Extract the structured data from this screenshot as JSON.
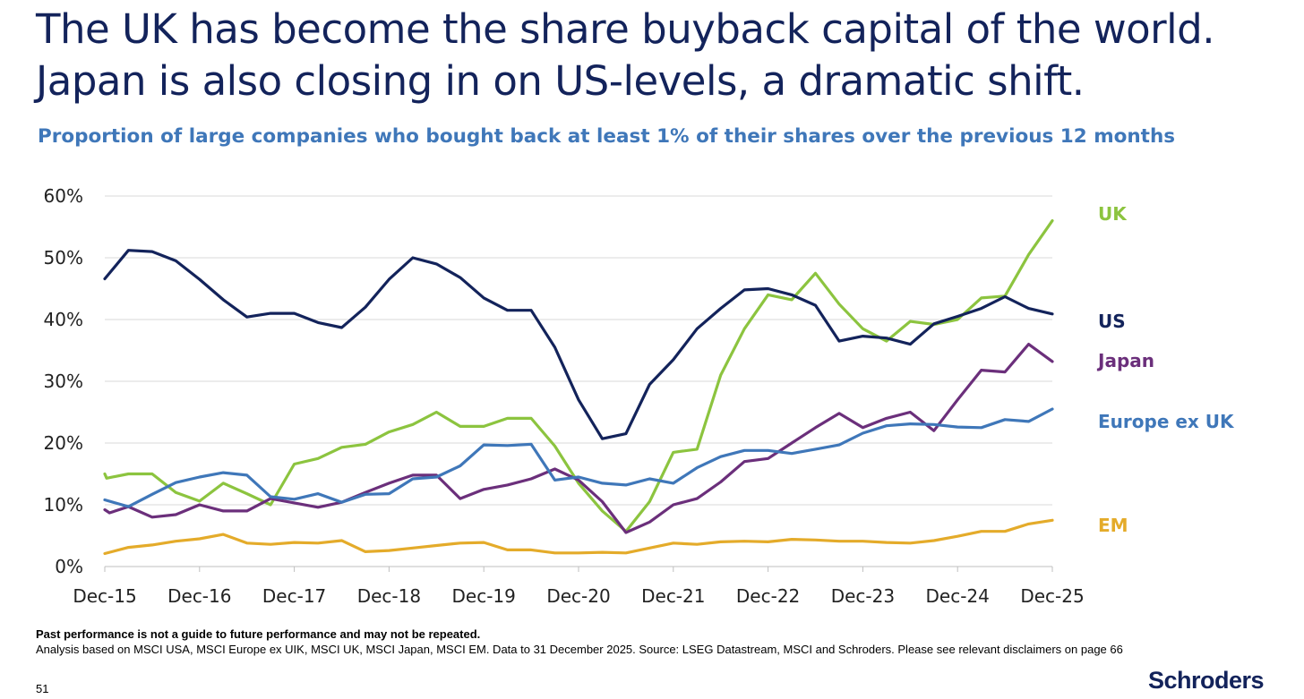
{
  "title_line1": "The UK has become the share buyback capital of the world.",
  "title_line2": "Japan is also closing in on US-levels, a dramatic shift.",
  "subtitle": "Proportion of large companies who bought back at least 1% of their shares over the previous 12 months",
  "footnote_bold": "Past performance is not a guide to future performance and may not be repeated.",
  "footnote": "Analysis based on MSCI USA, MSCI Europe ex UIK, MSCI UK, MSCI Japan, MSCI EM. Data to 31 December 2025. Source: LSEG Datastream, MSCI and Schroders. Please see relevant disclaimers on page 66",
  "page_number": "51",
  "logo_text": "Schroders",
  "chart_data": {
    "type": "line",
    "title": "Proportion of large companies who bought back at least 1% of their shares over the previous 12 months",
    "xlabel": "",
    "ylabel": "",
    "ylim": [
      0,
      0.6
    ],
    "yticks": [
      0,
      0.1,
      0.2,
      0.3,
      0.4,
      0.5,
      0.6
    ],
    "ytick_labels": [
      "0%",
      "10%",
      "20%",
      "30%",
      "40%",
      "50%",
      "60%"
    ],
    "xtick_labels": [
      "Dec-15",
      "Dec-16",
      "Dec-17",
      "Dec-18",
      "Dec-19",
      "Dec-20",
      "Dec-21",
      "Dec-22",
      "Dec-23",
      "Dec-24",
      "Dec-25"
    ],
    "x_start": "Dec-15",
    "x_end": "Dec-25",
    "x_unit": "years since Dec-15",
    "legend_placement": "right, inline labels",
    "grid": true,
    "series": [
      {
        "name": "UK",
        "color": "#8cc43f",
        "x": [
          0,
          0.02,
          0.25,
          0.5,
          0.75,
          1.0,
          1.25,
          1.5,
          1.75,
          2.0,
          2.25,
          2.5,
          2.75,
          3.0,
          3.25,
          3.5,
          3.75,
          4.0,
          4.25,
          4.5,
          4.75,
          5.0,
          5.25,
          5.5,
          5.75,
          6.0,
          6.25,
          6.5,
          6.75,
          7.0,
          7.25,
          7.5,
          7.75,
          8.0,
          8.25,
          8.5,
          8.75,
          9.0,
          9.25,
          9.5,
          9.75,
          10.0
        ],
        "y": [
          0.15,
          0.143,
          0.15,
          0.15,
          0.12,
          0.106,
          0.135,
          0.118,
          0.1,
          0.166,
          0.175,
          0.193,
          0.198,
          0.218,
          0.23,
          0.25,
          0.227,
          0.227,
          0.24,
          0.24,
          0.195,
          0.135,
          0.09,
          0.057,
          0.105,
          0.185,
          0.19,
          0.31,
          0.385,
          0.44,
          0.432,
          0.475,
          0.425,
          0.385,
          0.365,
          0.397,
          0.392,
          0.4,
          0.435,
          0.438,
          0.505,
          0.56
        ]
      },
      {
        "name": "US",
        "color": "#13235b",
        "x": [
          0,
          0.25,
          0.5,
          0.75,
          1.0,
          1.25,
          1.5,
          1.75,
          2.0,
          2.25,
          2.5,
          2.75,
          3.0,
          3.25,
          3.5,
          3.75,
          4.0,
          4.25,
          4.5,
          4.75,
          5.0,
          5.25,
          5.5,
          5.75,
          6.0,
          6.25,
          6.5,
          6.75,
          7.0,
          7.25,
          7.5,
          7.75,
          8.0,
          8.25,
          8.5,
          8.75,
          9.0,
          9.25,
          9.5,
          9.75,
          10.0
        ],
        "y": [
          0.466,
          0.512,
          0.51,
          0.495,
          0.465,
          0.432,
          0.404,
          0.41,
          0.41,
          0.395,
          0.387,
          0.42,
          0.465,
          0.5,
          0.49,
          0.468,
          0.435,
          0.415,
          0.415,
          0.355,
          0.27,
          0.207,
          0.215,
          0.295,
          0.335,
          0.385,
          0.418,
          0.448,
          0.45,
          0.44,
          0.423,
          0.365,
          0.373,
          0.37,
          0.36,
          0.393,
          0.405,
          0.418,
          0.437,
          0.418,
          0.409
        ]
      },
      {
        "name": "Japan",
        "color": "#6b2f7b",
        "x": [
          0,
          0.05,
          0.25,
          0.5,
          0.75,
          1.0,
          1.25,
          1.5,
          1.75,
          2.0,
          2.25,
          2.5,
          2.75,
          3.0,
          3.25,
          3.5,
          3.75,
          4.0,
          4.25,
          4.5,
          4.75,
          5.0,
          5.25,
          5.5,
          5.75,
          6.0,
          6.25,
          6.5,
          6.75,
          7.0,
          7.25,
          7.5,
          7.75,
          8.0,
          8.25,
          8.5,
          8.75,
          9.0,
          9.25,
          9.5,
          9.75,
          10.0
        ],
        "y": [
          0.092,
          0.087,
          0.097,
          0.08,
          0.084,
          0.1,
          0.09,
          0.09,
          0.11,
          0.103,
          0.096,
          0.104,
          0.12,
          0.135,
          0.148,
          0.148,
          0.11,
          0.125,
          0.132,
          0.142,
          0.158,
          0.14,
          0.105,
          0.055,
          0.072,
          0.1,
          0.11,
          0.137,
          0.17,
          0.175,
          0.2,
          0.225,
          0.248,
          0.225,
          0.24,
          0.25,
          0.22,
          0.27,
          0.318,
          0.315,
          0.36,
          0.332
        ]
      },
      {
        "name": "Europe ex UK",
        "color": "#3f77b9",
        "x": [
          0,
          0.25,
          0.5,
          0.75,
          1.0,
          1.25,
          1.5,
          1.75,
          2.0,
          2.25,
          2.5,
          2.75,
          3.0,
          3.25,
          3.5,
          3.75,
          4.0,
          4.25,
          4.5,
          4.75,
          5.0,
          5.25,
          5.5,
          5.75,
          6.0,
          6.25,
          6.5,
          6.75,
          7.0,
          7.25,
          7.5,
          7.75,
          8.0,
          8.25,
          8.5,
          8.75,
          9.0,
          9.25,
          9.5,
          9.75,
          10.0
        ],
        "y": [
          0.108,
          0.097,
          0.117,
          0.136,
          0.145,
          0.152,
          0.148,
          0.113,
          0.109,
          0.118,
          0.104,
          0.117,
          0.118,
          0.142,
          0.145,
          0.163,
          0.197,
          0.196,
          0.198,
          0.14,
          0.145,
          0.135,
          0.132,
          0.142,
          0.135,
          0.16,
          0.178,
          0.188,
          0.188,
          0.183,
          0.19,
          0.197,
          0.216,
          0.228,
          0.231,
          0.23,
          0.226,
          0.225,
          0.238,
          0.235,
          0.255
        ]
      },
      {
        "name": "EM",
        "color": "#e4ab2a",
        "x": [
          0,
          0.25,
          0.5,
          0.75,
          1.0,
          1.25,
          1.5,
          1.75,
          2.0,
          2.25,
          2.5,
          2.75,
          3.0,
          3.25,
          3.5,
          3.75,
          4.0,
          4.25,
          4.5,
          4.75,
          5.0,
          5.25,
          5.5,
          5.75,
          6.0,
          6.25,
          6.5,
          6.75,
          7.0,
          7.25,
          7.5,
          7.75,
          8.0,
          8.25,
          8.5,
          8.75,
          9.0,
          9.25,
          9.5,
          9.75,
          10.0
        ],
        "y": [
          0.021,
          0.031,
          0.035,
          0.041,
          0.045,
          0.052,
          0.038,
          0.036,
          0.039,
          0.038,
          0.042,
          0.024,
          0.026,
          0.03,
          0.034,
          0.038,
          0.039,
          0.027,
          0.027,
          0.022,
          0.022,
          0.023,
          0.022,
          0.03,
          0.038,
          0.036,
          0.04,
          0.041,
          0.04,
          0.044,
          0.043,
          0.041,
          0.041,
          0.039,
          0.038,
          0.042,
          0.049,
          0.057,
          0.057,
          0.069,
          0.075
        ]
      }
    ]
  }
}
